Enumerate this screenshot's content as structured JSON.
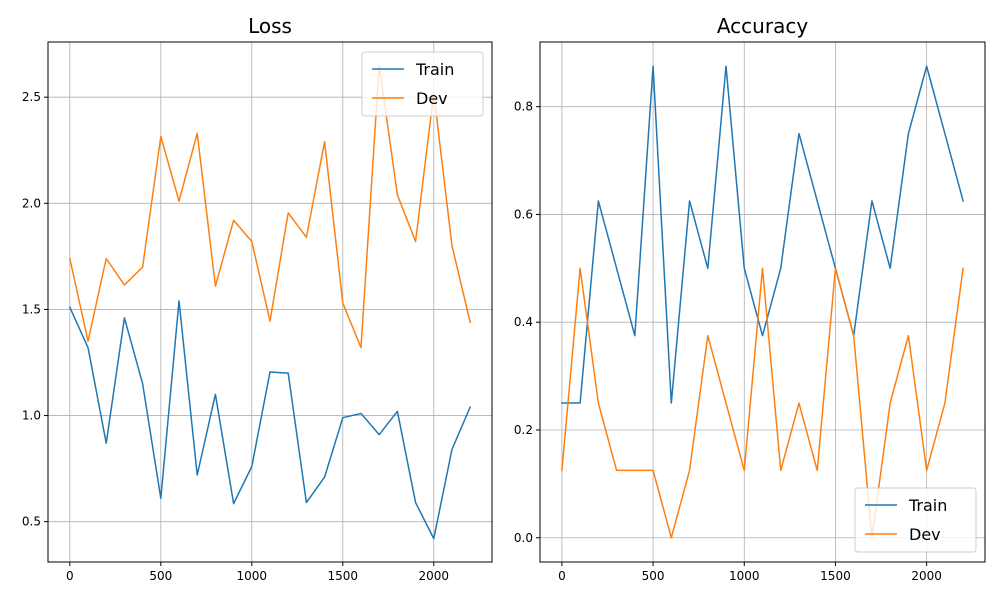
{
  "chart_data": [
    {
      "type": "line",
      "title": "Loss",
      "xlabel": "",
      "ylabel": "",
      "x": [
        0,
        100,
        200,
        300,
        400,
        500,
        600,
        700,
        800,
        900,
        1000,
        1100,
        1200,
        1300,
        1400,
        1500,
        1600,
        1700,
        1800,
        1900,
        2000,
        2100,
        2200
      ],
      "series": [
        {
          "name": "Train",
          "color": "#1f77b4",
          "values": [
            1.51,
            1.32,
            0.87,
            1.46,
            1.15,
            0.61,
            1.54,
            0.72,
            1.1,
            0.585,
            0.76,
            1.205,
            1.2,
            0.59,
            0.71,
            0.99,
            1.01,
            0.91,
            1.02,
            0.59,
            0.42,
            0.84,
            1.04
          ]
        },
        {
          "name": "Dev",
          "color": "#ff7f0e",
          "values": [
            1.74,
            1.35,
            1.74,
            1.615,
            1.7,
            2.315,
            2.01,
            2.33,
            1.61,
            1.92,
            1.82,
            1.445,
            1.955,
            1.84,
            2.29,
            1.53,
            1.32,
            2.65,
            2.04,
            1.82,
            2.52,
            1.8,
            1.44
          ]
        }
      ],
      "xlim": [
        -120,
        2320
      ],
      "ylim": [
        0.31,
        2.76
      ],
      "xticks": [
        0,
        500,
        1000,
        1500,
        2000
      ],
      "yticks": [
        0.5,
        1.0,
        1.5,
        2.0,
        2.5
      ],
      "xtick_labels": [
        "0",
        "500",
        "1000",
        "1500",
        "2000"
      ],
      "ytick_labels": [
        "0.5",
        "1.0",
        "1.5",
        "2.0",
        "2.5"
      ],
      "grid": true,
      "legend_position": "top-right"
    },
    {
      "type": "line",
      "title": "Accuracy",
      "xlabel": "",
      "ylabel": "",
      "x": [
        0,
        100,
        200,
        300,
        400,
        500,
        600,
        700,
        800,
        900,
        1000,
        1100,
        1200,
        1300,
        1400,
        1500,
        1600,
        1700,
        1800,
        1900,
        2000,
        2100,
        2200
      ],
      "series": [
        {
          "name": "Train",
          "color": "#1f77b4",
          "values": [
            0.25,
            0.25,
            0.625,
            0.5,
            0.375,
            0.875,
            0.25,
            0.625,
            0.5,
            0.875,
            0.5,
            0.375,
            0.5,
            0.75,
            0.625,
            0.5,
            0.375,
            0.625,
            0.5,
            0.75,
            0.875,
            0.75,
            0.625
          ]
        },
        {
          "name": "Dev",
          "color": "#ff7f0e",
          "values": [
            0.125,
            0.5,
            0.25,
            0.125,
            0.125,
            0.125,
            0.0,
            0.125,
            0.375,
            0.25,
            0.125,
            0.5,
            0.125,
            0.25,
            0.125,
            0.5,
            0.375,
            0.0,
            0.25,
            0.375,
            0.125,
            0.25,
            0.5
          ]
        }
      ],
      "xlim": [
        -120,
        2320
      ],
      "ylim": [
        -0.045,
        0.92
      ],
      "xticks": [
        0,
        500,
        1000,
        1500,
        2000
      ],
      "yticks": [
        0.0,
        0.2,
        0.4,
        0.6,
        0.8
      ],
      "xtick_labels": [
        "0",
        "500",
        "1000",
        "1500",
        "2000"
      ],
      "ytick_labels": [
        "0.0",
        "0.2",
        "0.4",
        "0.6",
        "0.8"
      ],
      "grid": true,
      "legend_position": "bottom-right"
    }
  ]
}
